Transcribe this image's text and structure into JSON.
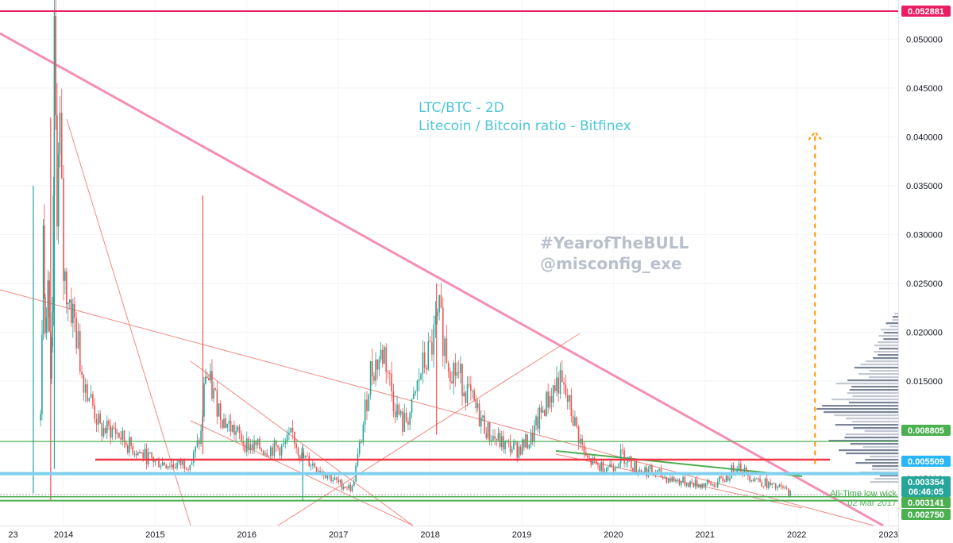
{
  "chart_data": {
    "type": "candlestick",
    "title": "LTC/BTC - 2D",
    "subtitle": "Litecoin / Bitcoin ratio - Bitfinex",
    "watermark": [
      "#YearofTheBULL",
      "@misconfig_exe"
    ],
    "x_tick_labels": [
      "23",
      "2014",
      "2015",
      "2016",
      "2017",
      "2018",
      "2019",
      "2020",
      "2021",
      "2022",
      "2023"
    ],
    "y_tick_labels": [
      "0.050000",
      "0.045000",
      "0.040000",
      "0.035000",
      "0.030000",
      "0.025000",
      "0.020000",
      "0.015000",
      "0.010000",
      "0.005000"
    ],
    "ylim": [
      0.0024,
      0.0535
    ],
    "price_badges": [
      {
        "label": "0.052881",
        "value": 0.052881,
        "color": "#e91e63"
      },
      {
        "label": "0.008805",
        "value": 0.008805,
        "color": "#4caf50"
      },
      {
        "label": "0.005509",
        "value": 0.005509,
        "color": "#29b6f6"
      },
      {
        "label": "0.003354",
        "value": 0.003354,
        "color": "#26a69a"
      },
      {
        "label": "06:46:05",
        "value": 0.00255,
        "color": "#26a69a"
      },
      {
        "label": "0.003141",
        "value": 0.003141,
        "color": "#4caf50"
      },
      {
        "label": "0.002750",
        "value": 0.00275,
        "color": "#4caf50"
      }
    ],
    "horizontal_levels": [
      {
        "value": 0.052881,
        "color": "#e91e63"
      },
      {
        "value": 0.008805,
        "color": "#4caf50"
      },
      {
        "value": 0.00695,
        "color": "#f23645"
      },
      {
        "value": 0.005509,
        "color": "#7fd0ee"
      },
      {
        "value": 0.003141,
        "color": "#4caf50"
      },
      {
        "value": 0.00275,
        "color": "#4caf50"
      }
    ],
    "annotation": [
      "All-Time low wick",
      "02 Mar 2017"
    ],
    "target_arrow": {
      "from": 0.0065,
      "to": 0.0405,
      "date": "2022.2"
    },
    "price_path": [
      [
        2013.75,
        0.011
      ],
      [
        2013.78,
        0.03
      ],
      [
        2013.8,
        0.022
      ],
      [
        2013.83,
        0.026
      ],
      [
        2013.86,
        0.014
      ],
      [
        2013.88,
        0.02
      ],
      [
        2013.9,
        0.048
      ],
      [
        2013.93,
        0.034
      ],
      [
        2013.96,
        0.04
      ],
      [
        2014.0,
        0.026
      ],
      [
        2014.05,
        0.024
      ],
      [
        2014.12,
        0.021
      ],
      [
        2014.2,
        0.016
      ],
      [
        2014.3,
        0.013
      ],
      [
        2014.4,
        0.01
      ],
      [
        2014.55,
        0.01
      ],
      [
        2014.7,
        0.0085
      ],
      [
        2014.85,
        0.0075
      ],
      [
        2015.0,
        0.0068
      ],
      [
        2015.2,
        0.0064
      ],
      [
        2015.4,
        0.0067
      ],
      [
        2015.5,
        0.0095
      ],
      [
        2015.55,
        0.016
      ],
      [
        2015.62,
        0.014
      ],
      [
        2015.75,
        0.011
      ],
      [
        2015.9,
        0.0095
      ],
      [
        2016.0,
        0.0085
      ],
      [
        2016.2,
        0.008
      ],
      [
        2016.4,
        0.0082
      ],
      [
        2016.5,
        0.0095
      ],
      [
        2016.6,
        0.0072
      ],
      [
        2016.8,
        0.006
      ],
      [
        2017.0,
        0.0045
      ],
      [
        2017.15,
        0.004
      ],
      [
        2017.25,
        0.0092
      ],
      [
        2017.35,
        0.016
      ],
      [
        2017.5,
        0.018
      ],
      [
        2017.6,
        0.013
      ],
      [
        2017.7,
        0.0105
      ],
      [
        2017.8,
        0.012
      ],
      [
        2017.9,
        0.016
      ],
      [
        2018.0,
        0.018
      ],
      [
        2018.1,
        0.0215
      ],
      [
        2018.2,
        0.017
      ],
      [
        2018.35,
        0.015
      ],
      [
        2018.5,
        0.012
      ],
      [
        2018.65,
        0.0095
      ],
      [
        2018.8,
        0.0085
      ],
      [
        2018.95,
        0.008
      ],
      [
        2019.1,
        0.009
      ],
      [
        2019.25,
        0.0125
      ],
      [
        2019.4,
        0.015
      ],
      [
        2019.5,
        0.013
      ],
      [
        2019.6,
        0.01
      ],
      [
        2019.7,
        0.007
      ],
      [
        2019.85,
        0.0062
      ],
      [
        2020.0,
        0.0064
      ],
      [
        2020.1,
        0.0075
      ],
      [
        2020.25,
        0.006
      ],
      [
        2020.4,
        0.0058
      ],
      [
        2020.6,
        0.005
      ],
      [
        2020.8,
        0.0046
      ],
      [
        2020.95,
        0.0044
      ],
      [
        2021.1,
        0.0044
      ],
      [
        2021.25,
        0.0052
      ],
      [
        2021.35,
        0.0066
      ],
      [
        2021.45,
        0.0055
      ],
      [
        2021.6,
        0.0048
      ],
      [
        2021.75,
        0.0041
      ],
      [
        2021.85,
        0.004
      ],
      [
        2021.95,
        0.00335
      ]
    ]
  }
}
